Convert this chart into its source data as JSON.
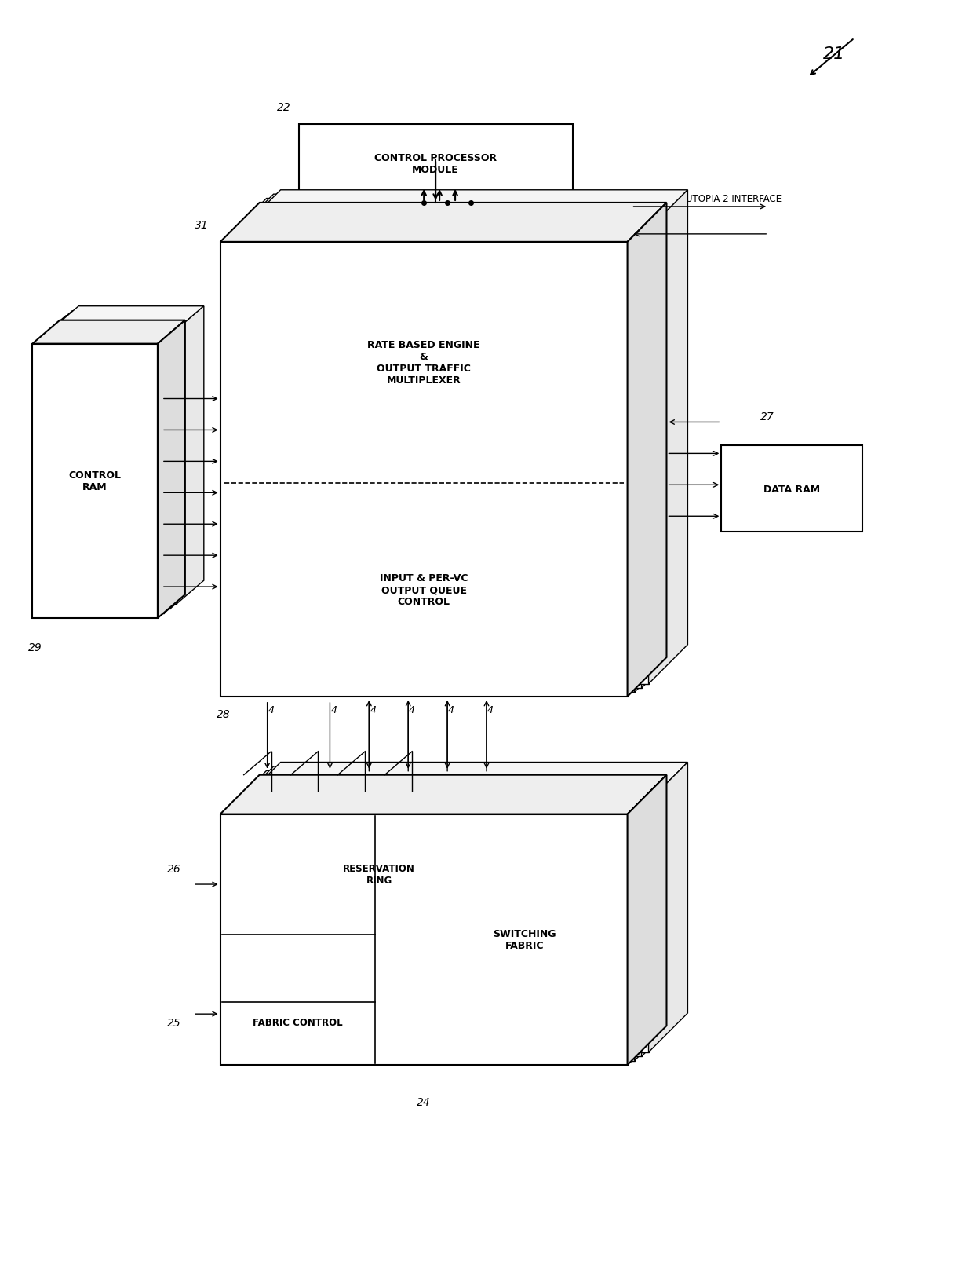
{
  "bg_color": "#ffffff",
  "line_color": "#000000",
  "fig_width": 12.4,
  "fig_height": 16.08,
  "labels": {
    "fig_number": "21",
    "control_processor": "CONTROL PROCESSOR\nMODULE",
    "control_processor_num": "22",
    "rate_based": "RATE BASED ENGINE\n&\nOUTPUT TRAFFIC\nMULTIPLEXER",
    "input_per_vc": "INPUT & PER-VC\nOUTPUT QUEUE\nCONTROL",
    "control_ram": "CONTROL\nRAM",
    "control_ram_num": "29",
    "data_ram": "DATA RAM",
    "data_ram_num": "27",
    "utopia": "UTOPIA 2 INTERFACE",
    "reservation_ring": "RESERVATION\nRING",
    "switching_fabric": "SWITCHING\nFABRIC",
    "fabric_control": "FABRIC CONTROL",
    "label_31": "31",
    "label_28": "28",
    "label_25": "25",
    "label_26": "26",
    "label_24": "24",
    "label_4s": [
      "4",
      "4",
      "4",
      "4",
      "4",
      "4"
    ]
  }
}
